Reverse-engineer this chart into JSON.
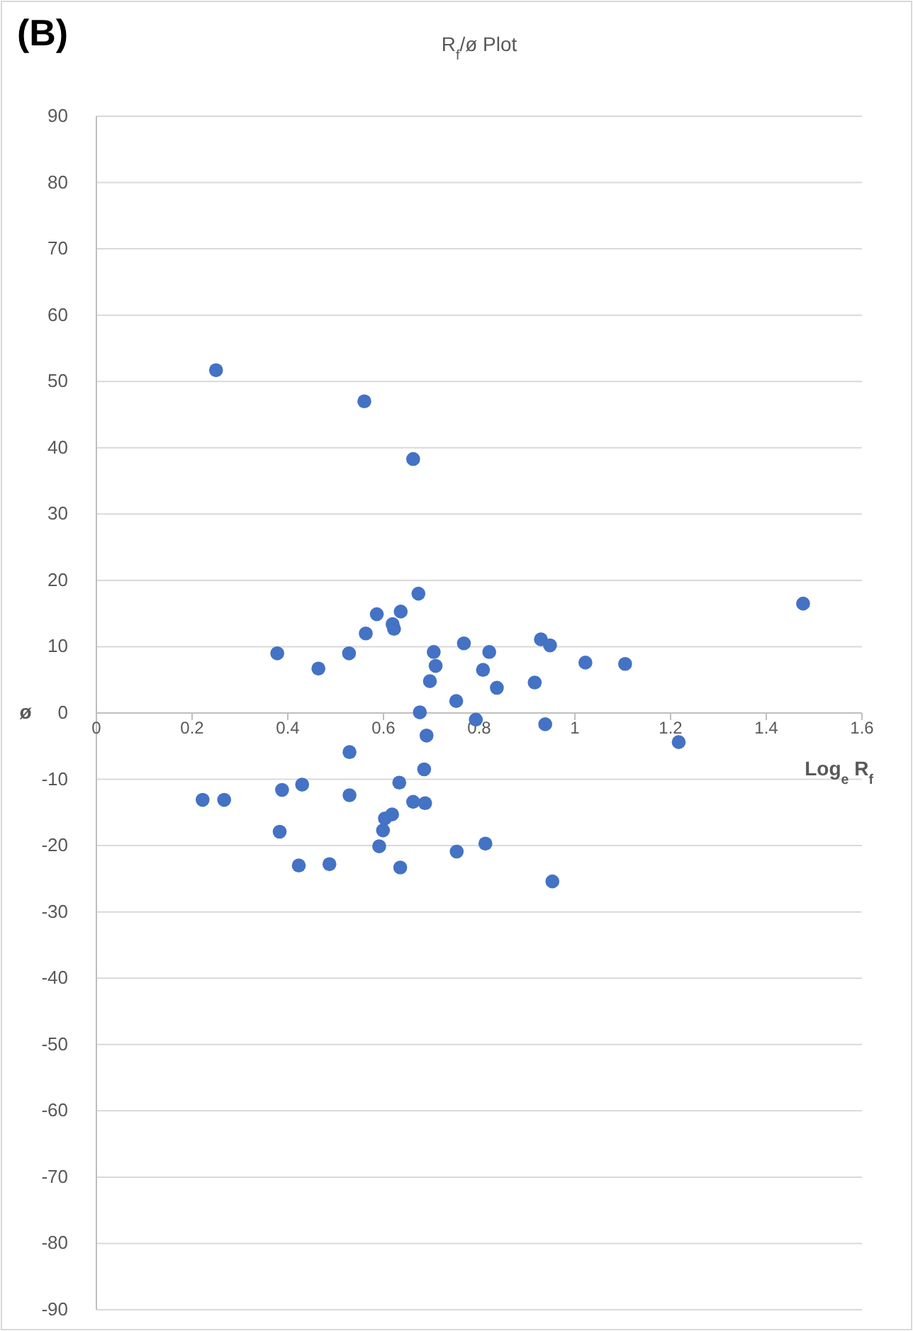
{
  "chart_data": {
    "type": "scatter",
    "title": "R$_{f}$/ø Plot",
    "xlabel": "Log$_{e}$ R$_{f}$",
    "ylabel": "ø",
    "annotations": [
      "(B)"
    ],
    "xlim": [
      0,
      1.6
    ],
    "xticks": [
      0,
      0.2,
      0.4,
      0.6,
      0.8,
      1,
      1.2,
      1.4,
      1.6
    ],
    "ylim": [
      -90,
      90
    ],
    "yticks": [
      -90,
      -80,
      -70,
      -60,
      -50,
      -40,
      -30,
      -20,
      -10,
      0,
      10,
      20,
      30,
      40,
      50,
      60,
      70,
      80,
      90
    ],
    "grid": "y",
    "marker": "circle",
    "series": [
      {
        "color": "#4472c4",
        "x": [
          0.25,
          0.56,
          0.662,
          0.673,
          0.586,
          0.636,
          0.619,
          0.622,
          0.563,
          0.378,
          0.464,
          0.528,
          0.705,
          0.709,
          0.697,
          0.768,
          0.821,
          0.808,
          0.837,
          0.752,
          0.676,
          0.793,
          0.69,
          0.529,
          0.685,
          0.633,
          0.43,
          0.388,
          0.529,
          0.222,
          0.267,
          0.662,
          0.687,
          0.618,
          0.603,
          0.599,
          0.383,
          0.591,
          0.813,
          0.753,
          0.423,
          0.487,
          0.635,
          1.477,
          0.929,
          0.948,
          1.022,
          1.105,
          0.916,
          0.938,
          1.217,
          0.953
        ],
        "values": [
          51.7,
          47,
          38.3,
          18,
          14.9,
          15.3,
          13.4,
          12.7,
          12,
          9,
          6.7,
          9,
          9.2,
          7.1,
          4.8,
          10.5,
          9.2,
          6.5,
          3.8,
          1.8,
          0.1,
          -1,
          -3.4,
          -5.9,
          -8.5,
          -10.5,
          -10.8,
          -11.6,
          -12.4,
          -13.1,
          -13.1,
          -13.4,
          -13.6,
          -15.3,
          -15.9,
          -17.7,
          -17.9,
          -20.1,
          -19.7,
          -20.9,
          -23,
          -22.8,
          -23.3,
          16.5,
          11.1,
          10.2,
          7.6,
          7.4,
          4.6,
          -1.7,
          -4.4,
          -25.4
        ]
      }
    ]
  }
}
